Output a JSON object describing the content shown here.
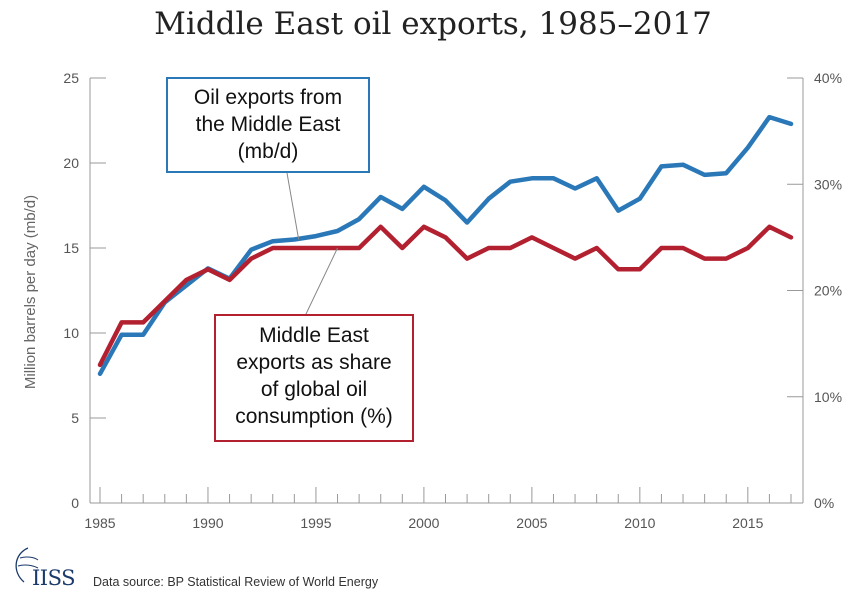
{
  "chart_data": {
    "type": "line",
    "title": "Middle East oil exports, 1985–2017",
    "ylabel": "Million barrels per day (mb/d)",
    "ylim": [
      0,
      25
    ],
    "y2lim": [
      0,
      40
    ],
    "yticks": [
      "0",
      "5",
      "10",
      "15",
      "20",
      "25"
    ],
    "y2ticks": [
      "0%",
      "10%",
      "20%",
      "30%",
      "40%"
    ],
    "xticks": [
      "1985",
      "1990",
      "1995",
      "2000",
      "2005",
      "2010",
      "2015"
    ],
    "x": [
      1985,
      1986,
      1987,
      1988,
      1989,
      1990,
      1991,
      1992,
      1993,
      1994,
      1995,
      1996,
      1997,
      1998,
      1999,
      2000,
      2001,
      2002,
      2003,
      2004,
      2005,
      2006,
      2007,
      2008,
      2009,
      2010,
      2011,
      2012,
      2013,
      2014,
      2015,
      2016,
      2017
    ],
    "series": [
      {
        "name": "Oil exports from the Middle East (mb/d)",
        "axis": "left",
        "color": "#2a78b8",
        "values": [
          7.6,
          9.9,
          9.9,
          11.8,
          12.8,
          13.8,
          13.2,
          14.9,
          15.4,
          15.5,
          15.7,
          16.0,
          16.7,
          18.0,
          17.3,
          18.6,
          17.8,
          16.5,
          17.9,
          18.9,
          19.1,
          19.1,
          18.5,
          19.1,
          17.2,
          17.9,
          19.8,
          19.9,
          19.3,
          19.4,
          20.9,
          22.7,
          22.3
        ]
      },
      {
        "name": "Middle East exports as share of global oil consumption (%)",
        "axis": "right",
        "color": "#b32131",
        "values": [
          13,
          17,
          17,
          19,
          21,
          22,
          21,
          23,
          24,
          24,
          24,
          24,
          24,
          26,
          24,
          26,
          25,
          23,
          24,
          24,
          25,
          24,
          23,
          24,
          22,
          22,
          24,
          24,
          23,
          23,
          24,
          26,
          25
        ]
      }
    ]
  },
  "annotations": {
    "oil_label": [
      "Oil exports from",
      "the Middle East",
      "(mb/d)"
    ],
    "share_label": [
      "Middle East",
      "exports as share",
      "of global oil",
      "consumption (%)"
    ]
  },
  "footer": {
    "logo": "IISS",
    "source": "Data source: BP Statistical Review of World Energy"
  }
}
